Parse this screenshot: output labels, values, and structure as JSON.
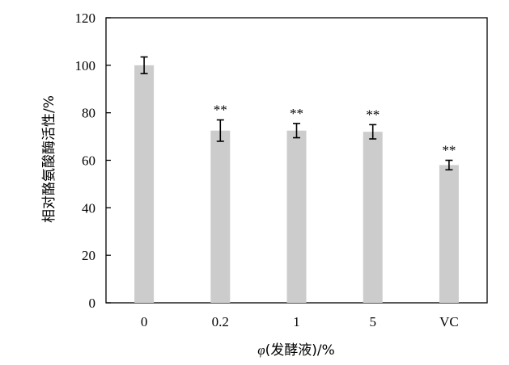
{
  "chart_data": {
    "type": "bar",
    "categories": [
      "0",
      "0.2",
      "1",
      "5",
      "VC"
    ],
    "values": [
      100,
      72.5,
      72.5,
      72,
      58
    ],
    "errors": [
      3.5,
      4.5,
      3,
      3,
      2
    ],
    "significance": [
      "",
      "**",
      "**",
      "**",
      "**"
    ],
    "ylabel": "相对酪氨酸酶活性/%",
    "xlabel_italic": "φ",
    "xlabel_rest": "(发酵液)/%",
    "ylim": [
      0,
      120
    ],
    "yticks": [
      0,
      20,
      40,
      60,
      80,
      100,
      120
    ],
    "grid": false,
    "bar_color": "#cccccc",
    "axis_color": "#000000"
  }
}
